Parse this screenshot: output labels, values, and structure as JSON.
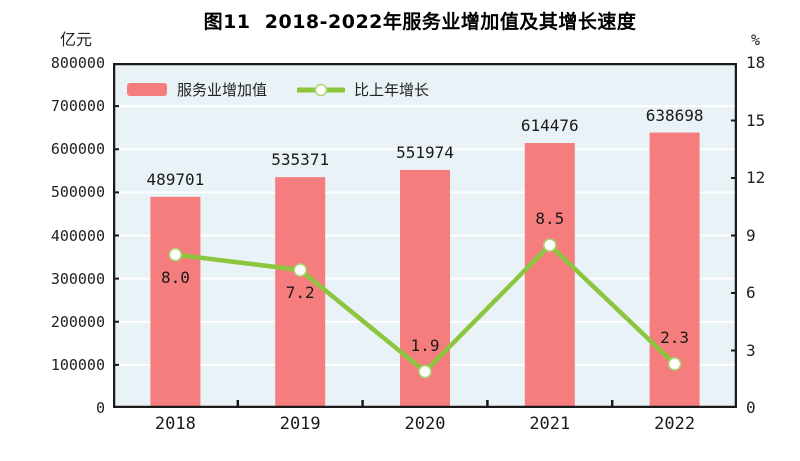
{
  "title": "图11  2018-2022年服务业增加值及其增长速度",
  "left_axis_unit": "亿元",
  "right_axis_unit": "%",
  "legend": {
    "bar_label": "服务业增加值",
    "line_label": "比上年增长"
  },
  "colors": {
    "bar": "#f57d7d",
    "line": "#8cc63e",
    "marker_fill": "#ffffff",
    "marker_stroke": "#a9d56e",
    "plot_bg": "#e9f2f7",
    "grid": "#ffffff",
    "axis": "#1a1a1a",
    "text": "#222222"
  },
  "chart_data": {
    "type": "bar",
    "subtype": "bar+line dual axis",
    "title": "图11  2018-2022年服务业增加值及其增长速度",
    "categories": [
      "2018",
      "2019",
      "2020",
      "2021",
      "2022"
    ],
    "series": [
      {
        "name": "服务业增加值",
        "type": "bar",
        "axis": "left",
        "unit": "亿元",
        "values": [
          489701,
          535371,
          551974,
          614476,
          638698
        ]
      },
      {
        "name": "比上年增长",
        "type": "line",
        "axis": "right",
        "unit": "%",
        "values": [
          8.0,
          7.2,
          1.9,
          8.5,
          2.3
        ],
        "labels": [
          "8.0",
          "7.2",
          "1.9",
          "8.5",
          "2.3"
        ],
        "label_positions": [
          "below",
          "below",
          "above",
          "above",
          "above"
        ]
      }
    ],
    "left_axis": {
      "min": 0,
      "max": 800000,
      "step": 100000
    },
    "right_axis": {
      "min": 0,
      "max": 18,
      "step": 3
    },
    "grid": true,
    "legend_position": "top-left-inside"
  }
}
